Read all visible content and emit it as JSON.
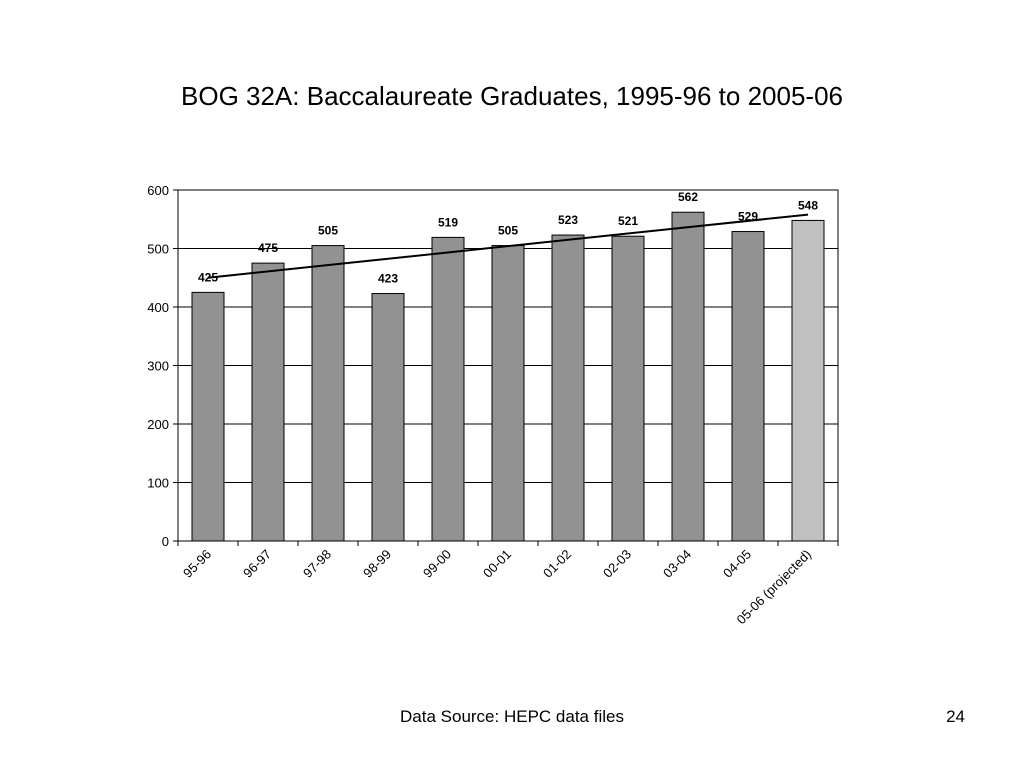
{
  "slide": {
    "title": "BOG 32A: Baccalaureate Graduates, 1995-96 to 2005-06",
    "source": "Data Source: HEPC data files",
    "page_number": "24"
  },
  "chart_data": {
    "type": "bar",
    "title": "",
    "xlabel": "",
    "ylabel": "",
    "categories": [
      "95-96",
      "96-97",
      "97-98",
      "98-99",
      "99-00",
      "00-01",
      "01-02",
      "02-03",
      "03-04",
      "04-05",
      "05-06 (projected)"
    ],
    "values": [
      425,
      475,
      505,
      423,
      519,
      505,
      523,
      521,
      562,
      529,
      548
    ],
    "data_labels": [
      "425",
      "475",
      "505",
      "423",
      "519",
      "505",
      "523",
      "521",
      "562",
      "529",
      "548"
    ],
    "highlighted_index": 10,
    "ylim": [
      0,
      600
    ],
    "yticks": [
      0,
      100,
      200,
      300,
      400,
      500,
      600
    ],
    "grid": true,
    "legend": false,
    "trendline": {
      "type": "linear",
      "start_value": 450,
      "end_value": 558
    },
    "colors": {
      "bar": "#929292",
      "bar_highlight": "#c0c0c0",
      "bar_stroke": "#000000",
      "gridline": "#000000",
      "trendline": "#000000"
    }
  }
}
